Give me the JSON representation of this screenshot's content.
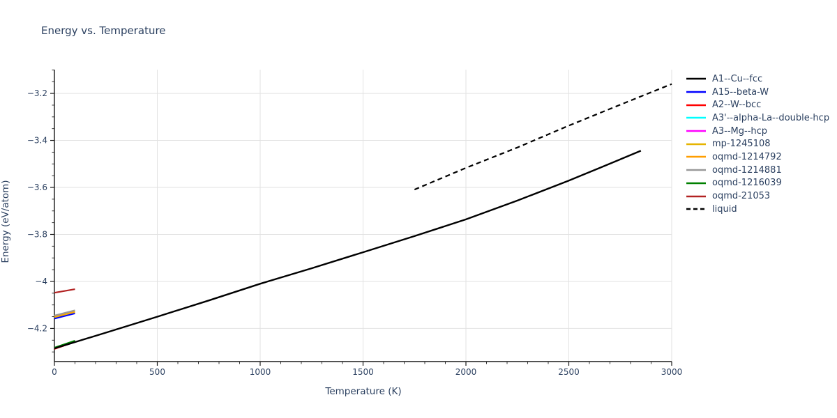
{
  "chart_data": {
    "type": "line",
    "title": "Energy vs. Temperature",
    "xlabel": "Temperature (K)",
    "ylabel": "Energy (eV/atom)",
    "xlim": [
      0,
      3000
    ],
    "ylim": [
      -4.341,
      -3.099
    ],
    "xticks": [
      {
        "value": 0,
        "label": "0"
      },
      {
        "value": 500,
        "label": "500"
      },
      {
        "value": 1000,
        "label": "1000"
      },
      {
        "value": 1500,
        "label": "1500"
      },
      {
        "value": 2000,
        "label": "2000"
      },
      {
        "value": 2500,
        "label": "2500"
      },
      {
        "value": 3000,
        "label": "3000"
      }
    ],
    "yticks": [
      {
        "value": -3.2,
        "label": "−3.2"
      },
      {
        "value": -3.4,
        "label": "−3.4"
      },
      {
        "value": -3.6,
        "label": "−3.6"
      },
      {
        "value": -3.8,
        "label": "−3.8"
      },
      {
        "value": -4.0,
        "label": "−4"
      },
      {
        "value": -4.2,
        "label": "−4.2"
      }
    ],
    "x_minor_step": 100,
    "y_minor_step": 0.05,
    "grid": true,
    "legend_position": "right",
    "colors": {
      "text": "#2a3f5f",
      "gridline": "#e2e2e2",
      "axis": "#1a1a1a"
    },
    "series": [
      {
        "name": "A1--Cu--fcc",
        "color": "#000000",
        "dash": "solid",
        "width": 2.4,
        "x": [
          0,
          250,
          500,
          750,
          1000,
          1250,
          1500,
          1750,
          2000,
          2250,
          2500,
          2650,
          2850
        ],
        "y": [
          -4.285,
          -4.218,
          -4.15,
          -4.081,
          -4.01,
          -3.944,
          -3.876,
          -3.807,
          -3.736,
          -3.656,
          -3.571,
          -3.517,
          -3.444
        ]
      },
      {
        "name": "A15--beta-W",
        "color": "#0000ff",
        "dash": "solid",
        "width": 2.2,
        "x": [
          0,
          100
        ],
        "y": [
          -4.158,
          -4.136
        ]
      },
      {
        "name": "A2--W--bcc",
        "color": "#ff0000",
        "dash": "solid",
        "width": 2.2,
        "x": [
          0,
          100
        ],
        "y": [
          -4.287,
          -4.257
        ]
      },
      {
        "name": "A3'--alpha-La--double-hcp",
        "color": "#00ffff",
        "dash": "solid",
        "width": 2.2,
        "x": [
          0,
          100
        ],
        "y": [
          -4.286,
          -4.258
        ]
      },
      {
        "name": "A3--Mg--hcp",
        "color": "#ff00ff",
        "dash": "solid",
        "width": 2.2,
        "x": [
          0,
          100
        ],
        "y": [
          -4.286,
          -4.258
        ]
      },
      {
        "name": "mp-1245108",
        "color": "#e6b400",
        "dash": "solid",
        "width": 2.2,
        "x": [
          0,
          100
        ],
        "y": [
          -4.152,
          -4.13
        ]
      },
      {
        "name": "oqmd-1214792",
        "color": "#ff9e00",
        "dash": "solid",
        "width": 2.2,
        "x": [
          0,
          100
        ],
        "y": [
          -4.149,
          -4.127
        ]
      },
      {
        "name": "oqmd-1214881",
        "color": "#999999",
        "dash": "solid",
        "width": 2.2,
        "x": [
          0,
          100
        ],
        "y": [
          -4.145,
          -4.123
        ]
      },
      {
        "name": "oqmd-1216039",
        "color": "#008000",
        "dash": "solid",
        "width": 2.2,
        "x": [
          0,
          100
        ],
        "y": [
          -4.282,
          -4.252
        ]
      },
      {
        "name": "oqmd-21053",
        "color": "#b22222",
        "dash": "solid",
        "width": 2.2,
        "x": [
          0,
          100
        ],
        "y": [
          -4.048,
          -4.033
        ]
      },
      {
        "name": "liquid",
        "color": "#000000",
        "dash": "dashed",
        "width": 2.2,
        "x": [
          1750,
          2000,
          2250,
          2500,
          2750,
          3000
        ],
        "y": [
          -3.609,
          -3.517,
          -3.43,
          -3.337,
          -3.248,
          -3.16
        ]
      }
    ],
    "draw_order": [
      3,
      4,
      1,
      5,
      6,
      7,
      2,
      8,
      9,
      0,
      10
    ]
  }
}
